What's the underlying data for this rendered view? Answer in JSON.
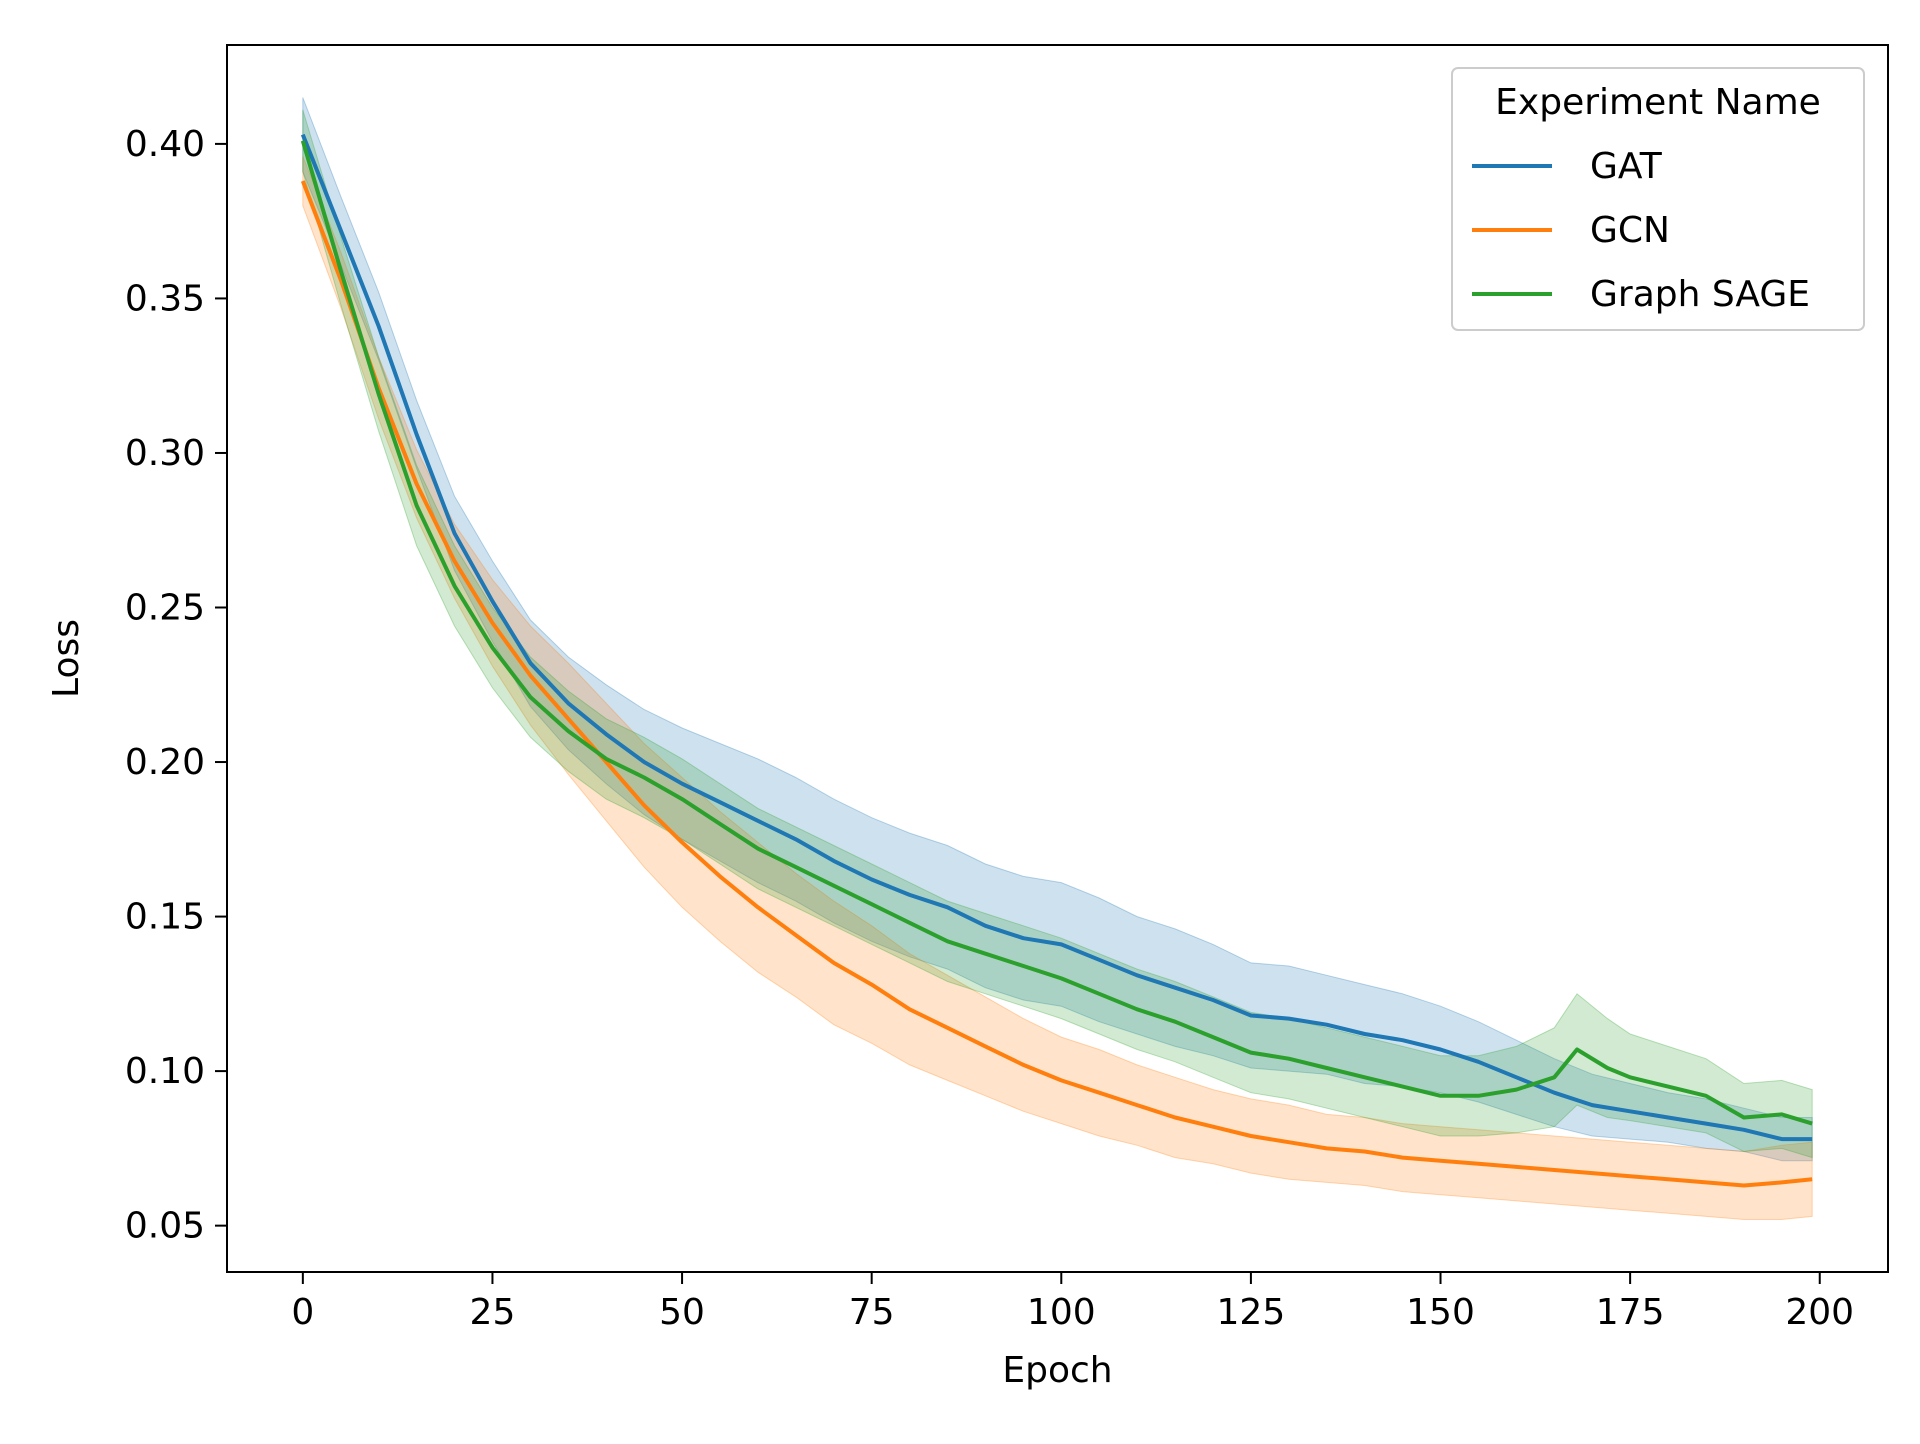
{
  "chart_data": {
    "type": "line",
    "title": "",
    "xlabel": "Epoch",
    "ylabel": "Loss",
    "xlim": [
      -10,
      209
    ],
    "ylim": [
      0.035,
      0.432
    ],
    "xticks": [
      0,
      25,
      50,
      75,
      100,
      125,
      150,
      175,
      200
    ],
    "xtick_labels": [
      "0",
      "25",
      "50",
      "75",
      "100",
      "125",
      "150",
      "175",
      "200"
    ],
    "yticks": [
      0.05,
      0.1,
      0.15,
      0.2,
      0.25,
      0.3,
      0.35,
      0.4
    ],
    "ytick_labels": [
      "0.05",
      "0.10",
      "0.15",
      "0.20",
      "0.25",
      "0.30",
      "0.35",
      "0.40"
    ],
    "grid": false,
    "legend": {
      "title": "Experiment Name",
      "placement": "top-right"
    },
    "series": [
      {
        "name": "GAT",
        "color": "#1f77b4",
        "band_opacity": 0.22,
        "points": [
          [
            0,
            0.403
          ],
          [
            5,
            0.372
          ],
          [
            10,
            0.341
          ],
          [
            15,
            0.306
          ],
          [
            20,
            0.274
          ],
          [
            25,
            0.252
          ],
          [
            30,
            0.232
          ],
          [
            35,
            0.219
          ],
          [
            40,
            0.209
          ],
          [
            45,
            0.2
          ],
          [
            50,
            0.193
          ],
          [
            55,
            0.187
          ],
          [
            60,
            0.181
          ],
          [
            65,
            0.175
          ],
          [
            70,
            0.168
          ],
          [
            75,
            0.162
          ],
          [
            80,
            0.157
          ],
          [
            85,
            0.153
          ],
          [
            90,
            0.147
          ],
          [
            95,
            0.143
          ],
          [
            100,
            0.141
          ],
          [
            105,
            0.136
          ],
          [
            110,
            0.131
          ],
          [
            115,
            0.127
          ],
          [
            120,
            0.123
          ],
          [
            125,
            0.118
          ],
          [
            130,
            0.117
          ],
          [
            135,
            0.115
          ],
          [
            140,
            0.112
          ],
          [
            145,
            0.11
          ],
          [
            150,
            0.107
          ],
          [
            155,
            0.103
          ],
          [
            160,
            0.098
          ],
          [
            165,
            0.093
          ],
          [
            170,
            0.089
          ],
          [
            175,
            0.087
          ],
          [
            180,
            0.085
          ],
          [
            185,
            0.083
          ],
          [
            190,
            0.081
          ],
          [
            195,
            0.078
          ],
          [
            199,
            0.078
          ]
        ],
        "band_half_width": [
          0.012,
          0.011,
          0.011,
          0.011,
          0.012,
          0.013,
          0.014,
          0.015,
          0.016,
          0.017,
          0.018,
          0.019,
          0.02,
          0.02,
          0.02,
          0.02,
          0.02,
          0.02,
          0.02,
          0.02,
          0.02,
          0.02,
          0.019,
          0.019,
          0.018,
          0.017,
          0.017,
          0.016,
          0.016,
          0.015,
          0.014,
          0.013,
          0.012,
          0.011,
          0.01,
          0.009,
          0.008,
          0.008,
          0.007,
          0.007,
          0.007
        ]
      },
      {
        "name": "GCN",
        "color": "#ff7f0e",
        "band_opacity": 0.22,
        "points": [
          [
            0,
            0.388
          ],
          [
            5,
            0.356
          ],
          [
            10,
            0.321
          ],
          [
            15,
            0.29
          ],
          [
            20,
            0.265
          ],
          [
            25,
            0.245
          ],
          [
            30,
            0.228
          ],
          [
            35,
            0.214
          ],
          [
            40,
            0.2
          ],
          [
            45,
            0.186
          ],
          [
            50,
            0.174
          ],
          [
            55,
            0.163
          ],
          [
            60,
            0.153
          ],
          [
            65,
            0.144
          ],
          [
            70,
            0.135
          ],
          [
            75,
            0.128
          ],
          [
            80,
            0.12
          ],
          [
            85,
            0.114
          ],
          [
            90,
            0.108
          ],
          [
            95,
            0.102
          ],
          [
            100,
            0.097
          ],
          [
            105,
            0.093
          ],
          [
            110,
            0.089
          ],
          [
            115,
            0.085
          ],
          [
            120,
            0.082
          ],
          [
            125,
            0.079
          ],
          [
            130,
            0.077
          ],
          [
            135,
            0.075
          ],
          [
            140,
            0.074
          ],
          [
            145,
            0.072
          ],
          [
            150,
            0.071
          ],
          [
            155,
            0.07
          ],
          [
            160,
            0.069
          ],
          [
            165,
            0.068
          ],
          [
            170,
            0.067
          ],
          [
            175,
            0.066
          ],
          [
            180,
            0.065
          ],
          [
            185,
            0.064
          ],
          [
            190,
            0.063
          ],
          [
            195,
            0.064
          ],
          [
            199,
            0.065
          ]
        ],
        "band_half_width": [
          0.008,
          0.009,
          0.01,
          0.011,
          0.012,
          0.014,
          0.016,
          0.018,
          0.019,
          0.02,
          0.021,
          0.021,
          0.021,
          0.02,
          0.02,
          0.019,
          0.018,
          0.017,
          0.016,
          0.015,
          0.014,
          0.014,
          0.013,
          0.013,
          0.012,
          0.012,
          0.012,
          0.011,
          0.011,
          0.011,
          0.011,
          0.011,
          0.011,
          0.011,
          0.011,
          0.011,
          0.011,
          0.011,
          0.011,
          0.012,
          0.012
        ]
      },
      {
        "name": "Graph SAGE",
        "color": "#2ca02c",
        "band_opacity": 0.22,
        "points": [
          [
            0,
            0.401
          ],
          [
            5,
            0.359
          ],
          [
            10,
            0.319
          ],
          [
            15,
            0.283
          ],
          [
            20,
            0.257
          ],
          [
            25,
            0.237
          ],
          [
            30,
            0.221
          ],
          [
            35,
            0.21
          ],
          [
            40,
            0.201
          ],
          [
            45,
            0.195
          ],
          [
            50,
            0.188
          ],
          [
            55,
            0.18
          ],
          [
            60,
            0.172
          ],
          [
            65,
            0.166
          ],
          [
            70,
            0.16
          ],
          [
            75,
            0.154
          ],
          [
            80,
            0.148
          ],
          [
            85,
            0.142
          ],
          [
            90,
            0.138
          ],
          [
            95,
            0.134
          ],
          [
            100,
            0.13
          ],
          [
            105,
            0.125
          ],
          [
            110,
            0.12
          ],
          [
            115,
            0.116
          ],
          [
            120,
            0.111
          ],
          [
            125,
            0.106
          ],
          [
            130,
            0.104
          ],
          [
            135,
            0.101
          ],
          [
            140,
            0.098
          ],
          [
            145,
            0.095
          ],
          [
            150,
            0.092
          ],
          [
            155,
            0.092
          ],
          [
            160,
            0.094
          ],
          [
            165,
            0.098
          ],
          [
            168,
            0.107
          ],
          [
            172,
            0.101
          ],
          [
            175,
            0.098
          ],
          [
            180,
            0.095
          ],
          [
            185,
            0.092
          ],
          [
            190,
            0.085
          ],
          [
            195,
            0.086
          ],
          [
            199,
            0.083
          ]
        ],
        "band_half_width": [
          0.01,
          0.011,
          0.012,
          0.013,
          0.013,
          0.013,
          0.013,
          0.013,
          0.013,
          0.013,
          0.013,
          0.013,
          0.013,
          0.013,
          0.013,
          0.013,
          0.013,
          0.013,
          0.013,
          0.013,
          0.013,
          0.013,
          0.013,
          0.013,
          0.013,
          0.013,
          0.013,
          0.013,
          0.013,
          0.013,
          0.013,
          0.013,
          0.014,
          0.016,
          0.018,
          0.016,
          0.014,
          0.013,
          0.012,
          0.011,
          0.011,
          0.011
        ]
      }
    ]
  }
}
